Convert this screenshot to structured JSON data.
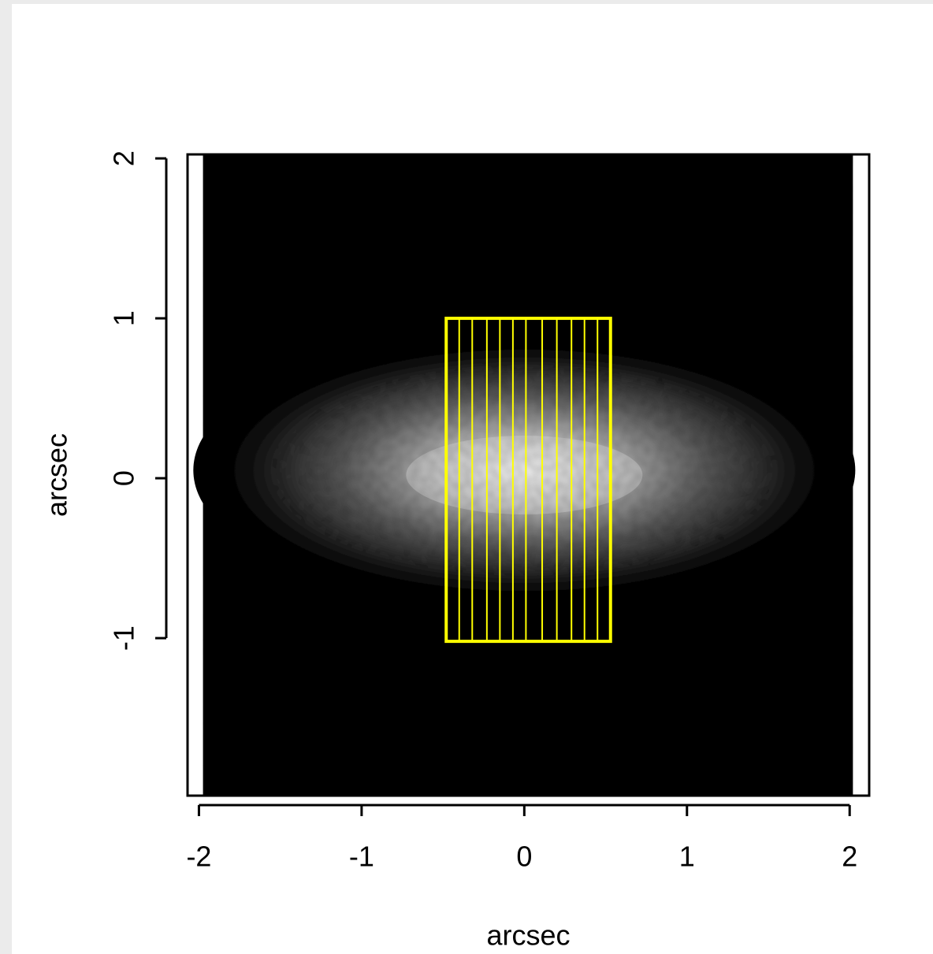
{
  "chart_data": {
    "type": "image",
    "xlabel": "arcsec",
    "ylabel": "arcsec",
    "xlim": [
      -2.07,
      2.12
    ],
    "ylim": [
      -1.985,
      2.025
    ],
    "xticks": [
      -2,
      -1,
      0,
      1,
      2
    ],
    "yticks": [
      -1,
      0,
      1,
      2
    ],
    "image_xlim": [
      -1.975,
      2.02
    ],
    "slit": {
      "x": [
        -0.48,
        0.53
      ],
      "y": [
        -1.02,
        1.0
      ],
      "color": "#ffff00"
    },
    "slit_lines": [
      -0.4,
      -0.32,
      -0.23,
      -0.15,
      -0.07,
      0.01,
      0.11,
      0.2,
      0.29,
      0.37,
      0.45
    ]
  }
}
